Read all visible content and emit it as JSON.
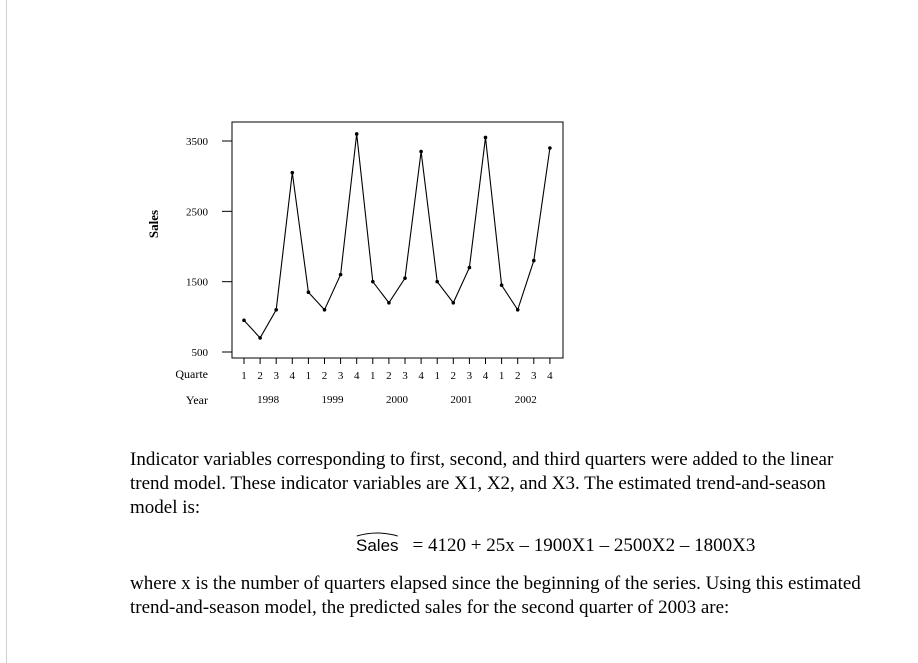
{
  "chart_data": {
    "type": "line",
    "ylabel": "Sales",
    "yticks": [
      500,
      1500,
      2500,
      3500
    ],
    "ylim": [
      500,
      3800
    ],
    "quarter_row_label": "Quarte",
    "year_row_label": "Year",
    "quarter_labels": [
      "1",
      "2",
      "3",
      "4",
      "1",
      "2",
      "3",
      "4",
      "1",
      "2",
      "3",
      "4",
      "1",
      "2",
      "3",
      "4",
      "1",
      "2",
      "3",
      "4"
    ],
    "years": [
      {
        "label": "1998",
        "index": 1.5
      },
      {
        "label": "1999",
        "index": 5.5
      },
      {
        "label": "2000",
        "index": 9.5
      },
      {
        "label": "2001",
        "index": 13.5
      },
      {
        "label": "2002",
        "index": 17.5
      }
    ],
    "values": [
      950,
      700,
      1100,
      3050,
      1350,
      1100,
      1600,
      3600,
      1500,
      1200,
      1550,
      3350,
      1500,
      1200,
      1700,
      3550,
      1450,
      1100,
      1800,
      3400
    ],
    "grid": false,
    "line_color": "#000000"
  },
  "text": {
    "para1": "Indicator variables corresponding to first, second, and third quarters were added to the linear trend model. These indicator variables are X1, X2, and X3. The estimated trend-and-season model is:",
    "equation_lhs": "Sales",
    "equation_rhs": "= 4120 + 25x – 1900X1 – 2500X2 – 1800X3",
    "para2": "where x is the number of quarters elapsed since the beginning of the series. Using this estimated trend-and-season model, the predicted sales for the second quarter of 2003 are:"
  }
}
